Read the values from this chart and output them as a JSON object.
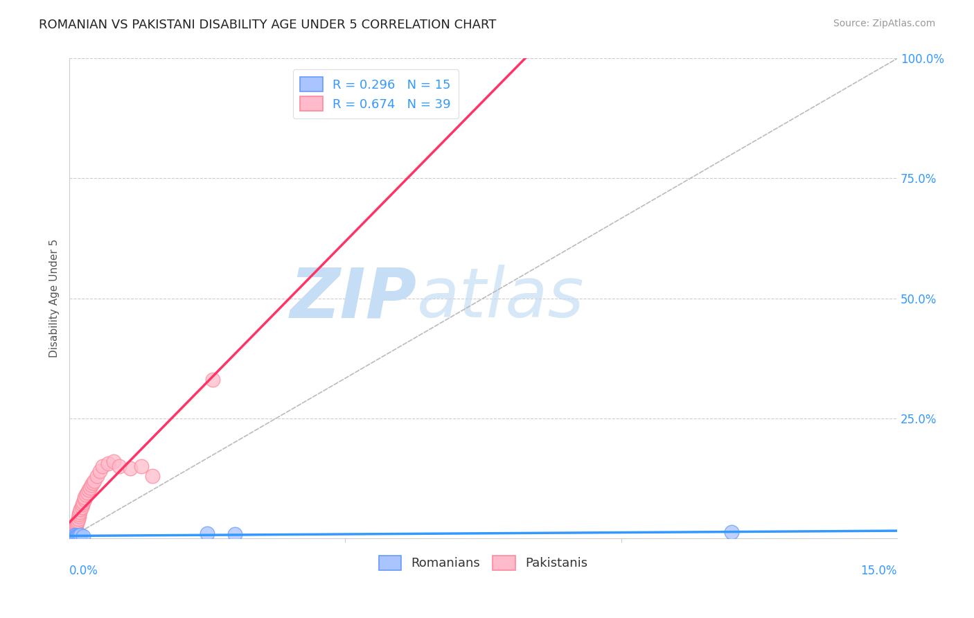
{
  "title": "ROMANIAN VS PAKISTANI DISABILITY AGE UNDER 5 CORRELATION CHART",
  "source": "Source: ZipAtlas.com",
  "ylabel": "Disability Age Under 5",
  "xlim": [
    0.0,
    15.0
  ],
  "ylim": [
    0.0,
    100.0
  ],
  "grid_color": "#cccccc",
  "background_color": "#ffffff",
  "title_color": "#222222",
  "title_fontsize": 13,
  "axis_color": "#3399ff",
  "watermark_color": "#c5ddf5",
  "romanian_color": "#6699ff",
  "romanian_color_fill": "#aac4ff",
  "pakistani_color": "#ff8899",
  "pakistani_color_fill": "#ffbbcc",
  "trend_romanian_color": "#3399ff",
  "trend_pakistani_color": "#ff3366",
  "ref_line_color": "#bbbbbb",
  "romanian_x": [
    0.05,
    0.07,
    0.08,
    0.09,
    0.1,
    0.11,
    0.12,
    0.13,
    0.15,
    0.17,
    0.2,
    0.25,
    2.5,
    3.0,
    12.0
  ],
  "romanian_y": [
    0.3,
    0.4,
    0.5,
    0.3,
    0.6,
    0.4,
    0.5,
    0.3,
    0.4,
    0.5,
    0.6,
    0.4,
    1.0,
    0.8,
    1.2
  ],
  "pakistani_x": [
    0.03,
    0.05,
    0.06,
    0.07,
    0.08,
    0.09,
    0.1,
    0.11,
    0.12,
    0.13,
    0.14,
    0.15,
    0.16,
    0.17,
    0.18,
    0.19,
    0.2,
    0.22,
    0.24,
    0.25,
    0.27,
    0.28,
    0.3,
    0.32,
    0.35,
    0.38,
    0.4,
    0.42,
    0.45,
    0.5,
    0.55,
    0.6,
    0.7,
    0.8,
    0.9,
    1.1,
    1.3,
    1.5,
    2.6
  ],
  "pakistani_y": [
    0.2,
    0.4,
    0.6,
    0.8,
    1.0,
    1.2,
    1.5,
    2.0,
    2.5,
    3.0,
    3.2,
    3.5,
    4.0,
    4.5,
    5.0,
    5.5,
    6.0,
    6.5,
    7.0,
    7.5,
    8.0,
    8.5,
    9.0,
    9.5,
    10.0,
    10.5,
    11.0,
    11.5,
    12.0,
    13.0,
    14.0,
    15.0,
    15.5,
    16.0,
    15.0,
    14.5,
    15.0,
    13.0,
    33.0
  ]
}
